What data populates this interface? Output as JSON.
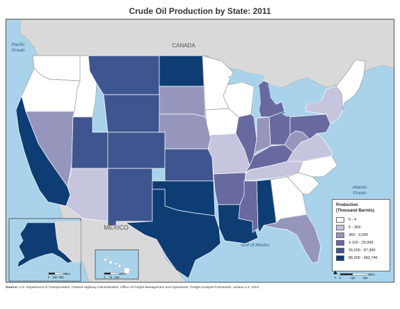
{
  "title": "Crude Oil Production by State: 2011",
  "map_labels": {
    "pacific": "Pacific\nOcean",
    "canada": "CANADA",
    "atlantic": "Atlantic\nOcean",
    "mexico": "MEXICO",
    "gulf": "Gulf of Mexico"
  },
  "legend": {
    "title_line1": "Production",
    "title_line2": "(Thousand Barrels)",
    "classes": [
      {
        "label": "0 - 4",
        "color": "#ffffff"
      },
      {
        "label": "5 - 359",
        "color": "#c5c5dd"
      },
      {
        "label": "360 - 3,099",
        "color": "#9696bd"
      },
      {
        "label": "3,100 - 25,999",
        "color": "#67699f"
      },
      {
        "label": "26,000 - 87,999",
        "color": "#3e5590"
      },
      {
        "label": "88,000 - 582,746",
        "color": "#0e3d74"
      }
    ]
  },
  "state_classes": {
    "WA": 0,
    "OR": 0,
    "ID": 0,
    "CA": 5,
    "NV": 2,
    "AZ": 1,
    "UT": 4,
    "MT": 4,
    "WY": 4,
    "CO": 4,
    "NM": 4,
    "ND": 5,
    "SD": 2,
    "NE": 2,
    "KS": 4,
    "OK": 5,
    "TX": 5,
    "MN": 0,
    "IA": 0,
    "MO": 1,
    "AR": 3,
    "LA": 5,
    "WI": 0,
    "IL": 3,
    "MI": 3,
    "IN": 2,
    "OH": 3,
    "KY": 3,
    "TN": 1,
    "MS": 3,
    "AL": 5,
    "GA": 0,
    "FL": 2,
    "SC": 0,
    "NC": 0,
    "VA": 1,
    "WV": 2,
    "PA": 3,
    "NY": 1,
    "NE-states": 0,
    "AK": 5,
    "HI": 0
  },
  "alaska_scale": [
    "0",
    "250",
    "500",
    "Miles"
  ],
  "hawaii_scale": [
    "0",
    "75",
    "150",
    "Miles"
  ],
  "main_scale": [
    "0",
    "150",
    "300",
    "Miles"
  ],
  "source": {
    "label": "Source:",
    "text": "U.S. Department of Transportation, Federal Highway Administration, Office of Freight Management and Operations, Freight Analysis Framework, version 3.4, 2013."
  }
}
